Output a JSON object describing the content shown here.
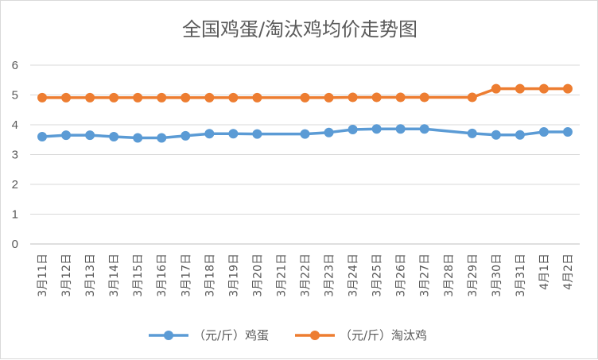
{
  "chart_data": {
    "type": "line",
    "title": "全国鸡蛋/淘汰鸡均价走势图",
    "xlabel": "",
    "ylabel": "",
    "ylim": [
      0,
      6
    ],
    "yticks": [
      "0",
      "1",
      "2",
      "3",
      "4",
      "5",
      "6"
    ],
    "grid": true,
    "legend_position": "bottom",
    "categories": [
      "3月11日",
      "3月12日",
      "3月13日",
      "3月14日",
      "3月15日",
      "3月16日",
      "3月17日",
      "3月18日",
      "3月19日",
      "3月20日",
      "3月21日",
      "3月22日",
      "3月23日",
      "3月24日",
      "3月25日",
      "3月26日",
      "3月27日",
      "3月28日",
      "3月29日",
      "3月30日",
      "3月31日",
      "4月1日",
      "4月2日"
    ],
    "series": [
      {
        "name": "（元/斤）鸡蛋",
        "color": "#5B9BD5",
        "values": [
          3.6,
          3.65,
          3.65,
          3.6,
          3.56,
          3.56,
          3.63,
          3.7,
          3.7,
          3.69,
          null,
          3.69,
          3.74,
          3.84,
          3.86,
          3.86,
          3.86,
          null,
          3.71,
          3.66,
          3.66,
          3.76,
          3.76
        ]
      },
      {
        "name": "（元/斤）淘汰鸡",
        "color": "#ED7D31",
        "values": [
          4.91,
          4.91,
          4.91,
          4.91,
          4.91,
          4.91,
          4.91,
          4.91,
          4.91,
          4.91,
          null,
          4.91,
          4.91,
          4.92,
          4.92,
          4.92,
          4.92,
          null,
          4.92,
          5.21,
          5.21,
          5.21,
          5.21
        ]
      }
    ]
  }
}
